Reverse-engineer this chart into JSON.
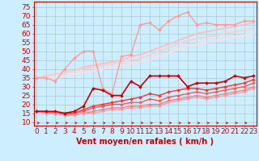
{
  "x": [
    0,
    1,
    2,
    3,
    4,
    5,
    6,
    7,
    8,
    9,
    10,
    11,
    12,
    13,
    14,
    15,
    16,
    17,
    18,
    19,
    20,
    21,
    22,
    23
  ],
  "series": [
    {
      "y": [
        35,
        35,
        33,
        40,
        46,
        50,
        50,
        29,
        26,
        47,
        48,
        65,
        66,
        62,
        67,
        70,
        72,
        65,
        66,
        65,
        65,
        65,
        67,
        67
      ],
      "color": "#ff9999",
      "lw": 1.0,
      "marker": "D",
      "ms": 2.0,
      "zorder": 3
    },
    {
      "y": [
        35,
        36,
        37,
        38,
        39,
        41,
        42,
        43,
        44,
        45,
        47,
        48,
        50,
        52,
        54,
        56,
        58,
        60,
        61,
        62,
        63,
        64,
        65,
        66
      ],
      "color": "#ffbbbb",
      "lw": 1.2,
      "marker": null,
      "ms": 0,
      "zorder": 2
    },
    {
      "y": [
        35,
        36,
        37,
        38,
        39,
        40,
        41,
        42,
        43,
        44,
        45,
        46,
        48,
        50,
        52,
        54,
        56,
        57,
        58,
        59,
        60,
        61,
        62,
        63
      ],
      "color": "#ffcccc",
      "lw": 1.2,
      "marker": null,
      "ms": 0,
      "zorder": 2
    },
    {
      "y": [
        35,
        35,
        35,
        36,
        37,
        38,
        39,
        40,
        41,
        42,
        43,
        44,
        45,
        47,
        49,
        51,
        53,
        54,
        55,
        56,
        57,
        58,
        59,
        60
      ],
      "color": "#ffdddd",
      "lw": 1.5,
      "marker": null,
      "ms": 0,
      "zorder": 2
    },
    {
      "y": [
        16,
        16,
        16,
        15,
        16,
        19,
        29,
        28,
        25,
        25,
        33,
        30,
        36,
        36,
        36,
        36,
        30,
        32,
        32,
        32,
        33,
        36,
        35,
        36
      ],
      "color": "#cc0000",
      "lw": 1.2,
      "marker": "D",
      "ms": 2.0,
      "zorder": 4
    },
    {
      "y": [
        16,
        16,
        15,
        15,
        15,
        17,
        19,
        20,
        21,
        22,
        23,
        24,
        26,
        25,
        27,
        28,
        29,
        29,
        28,
        29,
        30,
        31,
        32,
        34
      ],
      "color": "#ff3333",
      "lw": 1.0,
      "marker": "D",
      "ms": 2.0,
      "zorder": 3
    },
    {
      "y": [
        16,
        16,
        15,
        14,
        15,
        16,
        18,
        19,
        20,
        20,
        21,
        21,
        23,
        22,
        24,
        25,
        26,
        27,
        26,
        27,
        28,
        29,
        30,
        32
      ],
      "color": "#ff5555",
      "lw": 1.0,
      "marker": "D",
      "ms": 1.8,
      "zorder": 3
    },
    {
      "y": [
        16,
        15,
        15,
        14,
        14,
        15,
        16,
        17,
        18,
        18,
        19,
        19,
        20,
        20,
        22,
        23,
        24,
        25,
        24,
        25,
        26,
        27,
        28,
        30
      ],
      "color": "#ff7777",
      "lw": 0.9,
      "marker": "D",
      "ms": 1.8,
      "zorder": 3
    },
    {
      "y": [
        16,
        15,
        15,
        14,
        14,
        15,
        15,
        16,
        17,
        17,
        18,
        18,
        19,
        19,
        21,
        22,
        23,
        24,
        23,
        24,
        25,
        26,
        27,
        29
      ],
      "color": "#ff9999",
      "lw": 0.9,
      "marker": "D",
      "ms": 1.5,
      "zorder": 3
    }
  ],
  "xlabel": "Vent moyen/en rafales ( km/h )",
  "ylim": [
    8,
    78
  ],
  "yticks": [
    10,
    15,
    20,
    25,
    30,
    35,
    40,
    45,
    50,
    55,
    60,
    65,
    70,
    75
  ],
  "xlim": [
    -0.3,
    23.3
  ],
  "bg_color": "#cceeff",
  "grid_color": "#aacccc",
  "axis_color": "#cc0000",
  "text_color": "#cc0000",
  "label_fontsize": 6.5
}
